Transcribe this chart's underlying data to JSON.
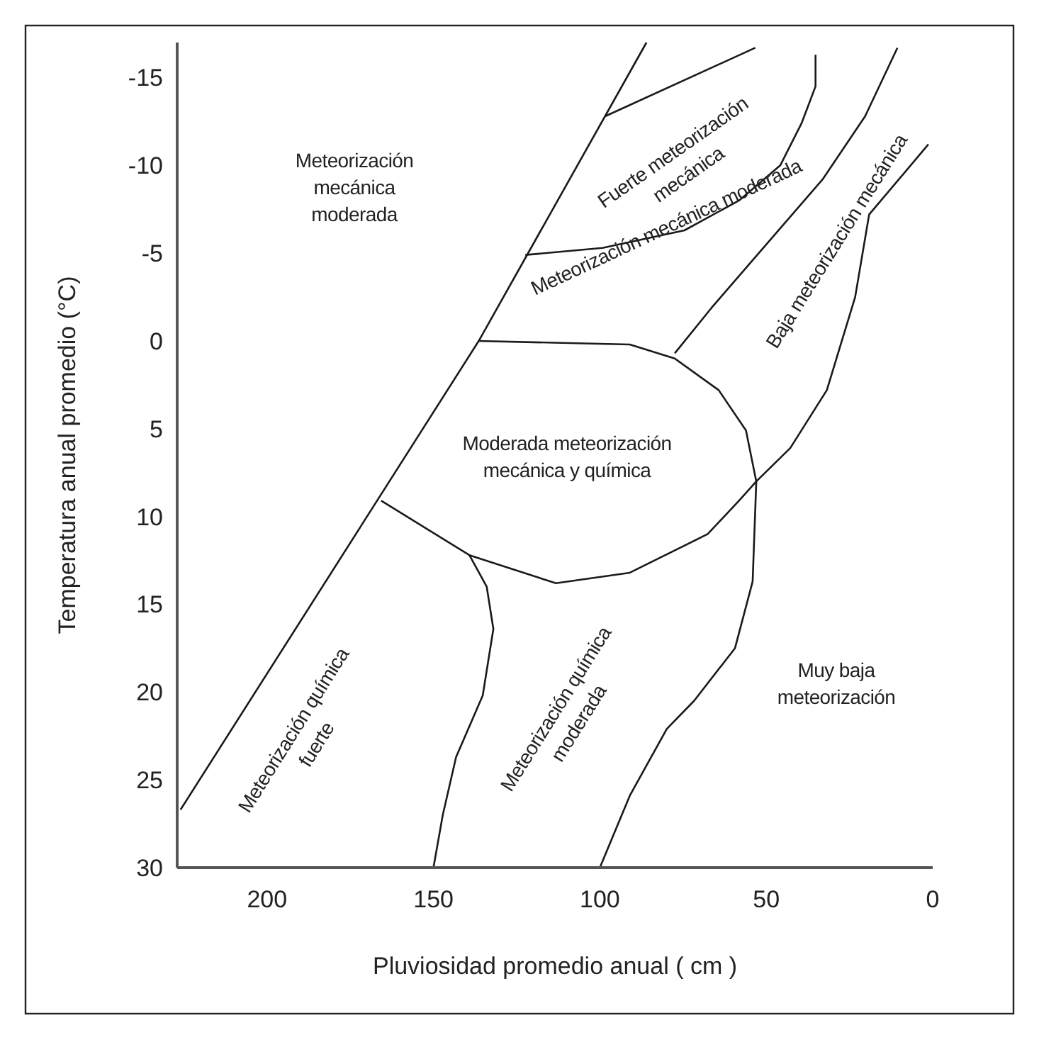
{
  "chart_data": {
    "type": "line",
    "xlabel": "Pluviosidad promedio anual ( cm )",
    "ylabel": "Temperatura anual promedio  (°C)",
    "xlim": [
      227,
      0
    ],
    "ylim": [
      30,
      -17
    ],
    "xticks": [
      200,
      150,
      100,
      50,
      0
    ],
    "yticks": [
      -15,
      -10,
      -5,
      0,
      5,
      10,
      15,
      20,
      25,
      30
    ],
    "series": [
      {
        "color": "#1a1a1a",
        "x": [
          226,
          136.4,
          86
        ],
        "values": [
          26.7,
          0,
          -17
        ]
      },
      {
        "color": "#1a1a1a",
        "x": [
          98.4,
          53.3
        ],
        "values": [
          -12.8,
          -16.7
        ]
      },
      {
        "color": "#1a1a1a",
        "x": [
          122.4,
          99.2,
          74.6,
          58.2,
          45.8,
          39.4,
          35.2,
          35.2
        ],
        "values": [
          -4.9,
          -5.3,
          -6.3,
          -8.0,
          -10.0,
          -12.4,
          -14.5,
          -16.3
        ]
      },
      {
        "color": "#1a1a1a",
        "x": [
          77.5,
          66.4,
          50,
          33.1,
          20.3,
          10.6
        ],
        "values": [
          0.7,
          -1.9,
          -5.5,
          -9.2,
          -12.8,
          -16.7
        ]
      },
      {
        "color": "#1a1a1a",
        "x": [
          136.4,
          91.0,
          77.5,
          64.3,
          56.1,
          53,
          58.2,
          67.6,
          91.0,
          113.2,
          139.2,
          165.7
        ],
        "values": [
          0,
          0.2,
          1.0,
          2.8,
          5.1,
          8,
          9.1,
          11.0,
          13.2,
          13.8,
          12.2,
          9.1
        ]
      },
      {
        "color": "#1a1a1a",
        "x": [
          1.3,
          19.1,
          23.3,
          31.8,
          42.8,
          53,
          54.1,
          59.4,
          71.7,
          79.9,
          91.0,
          100
        ],
        "values": [
          -11.2,
          -7.2,
          -2.5,
          2.8,
          6.1,
          8,
          13.7,
          17.5,
          20.5,
          22.1,
          25.9,
          30
        ]
      },
      {
        "color": "#1a1a1a",
        "x": [
          139.2,
          134.0,
          132.0,
          135.2,
          143.2,
          147.2,
          150
        ],
        "values": [
          12.2,
          14.0,
          16.4,
          20.2,
          23.7,
          27.0,
          30
        ]
      }
    ],
    "annotations": [
      "Meteorización\nmecánica\nmoderada",
      "Fuerte meteorización\nmecánica",
      "Meteorización mecánica moderada",
      "Baja meteorización    mecánica",
      "Moderada meteorización\nmecánica y química",
      "Meteorización química\nfuerte",
      "Meteorización química\nmoderada",
      "Muy baja\nmeteorización"
    ]
  }
}
